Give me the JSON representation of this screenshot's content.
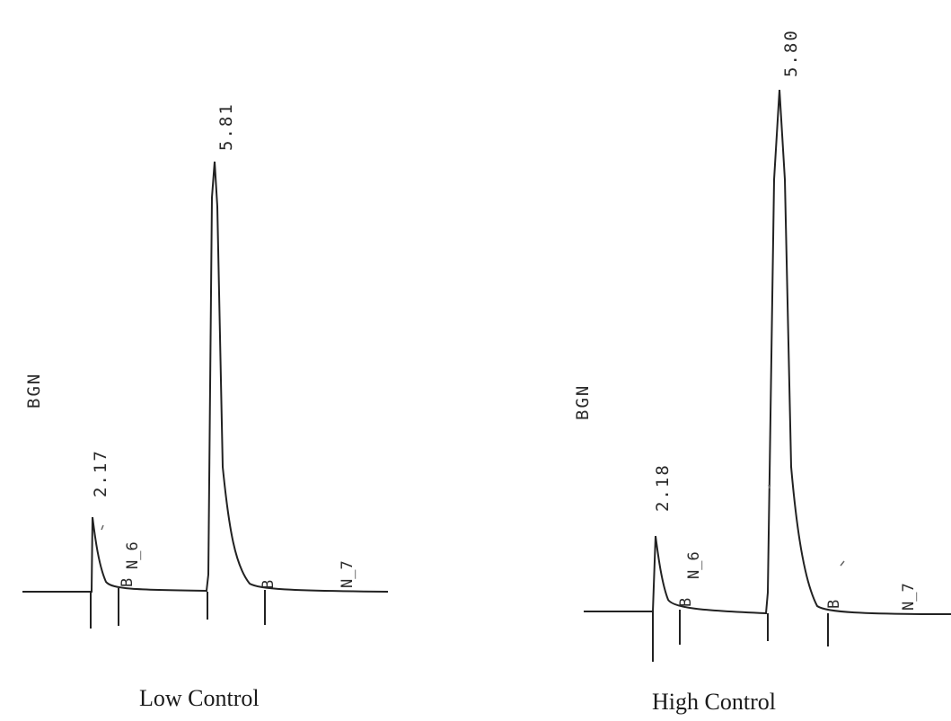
{
  "chart_data": [
    {
      "type": "line",
      "name": "low",
      "caption": "Low Control",
      "ylabel": "BGN",
      "peaks": [
        {
          "label": "2.17"
        },
        {
          "label": "5.81"
        }
      ],
      "markers": [
        "B",
        "N_6",
        "B",
        "N_7"
      ]
    },
    {
      "type": "line",
      "name": "high",
      "caption": "High Control",
      "ylabel": "BGN",
      "peaks": [
        {
          "label": "2.18"
        },
        {
          "label": "5.80"
        }
      ],
      "markers": [
        "B",
        "N_6",
        "B",
        "N_7"
      ]
    }
  ]
}
